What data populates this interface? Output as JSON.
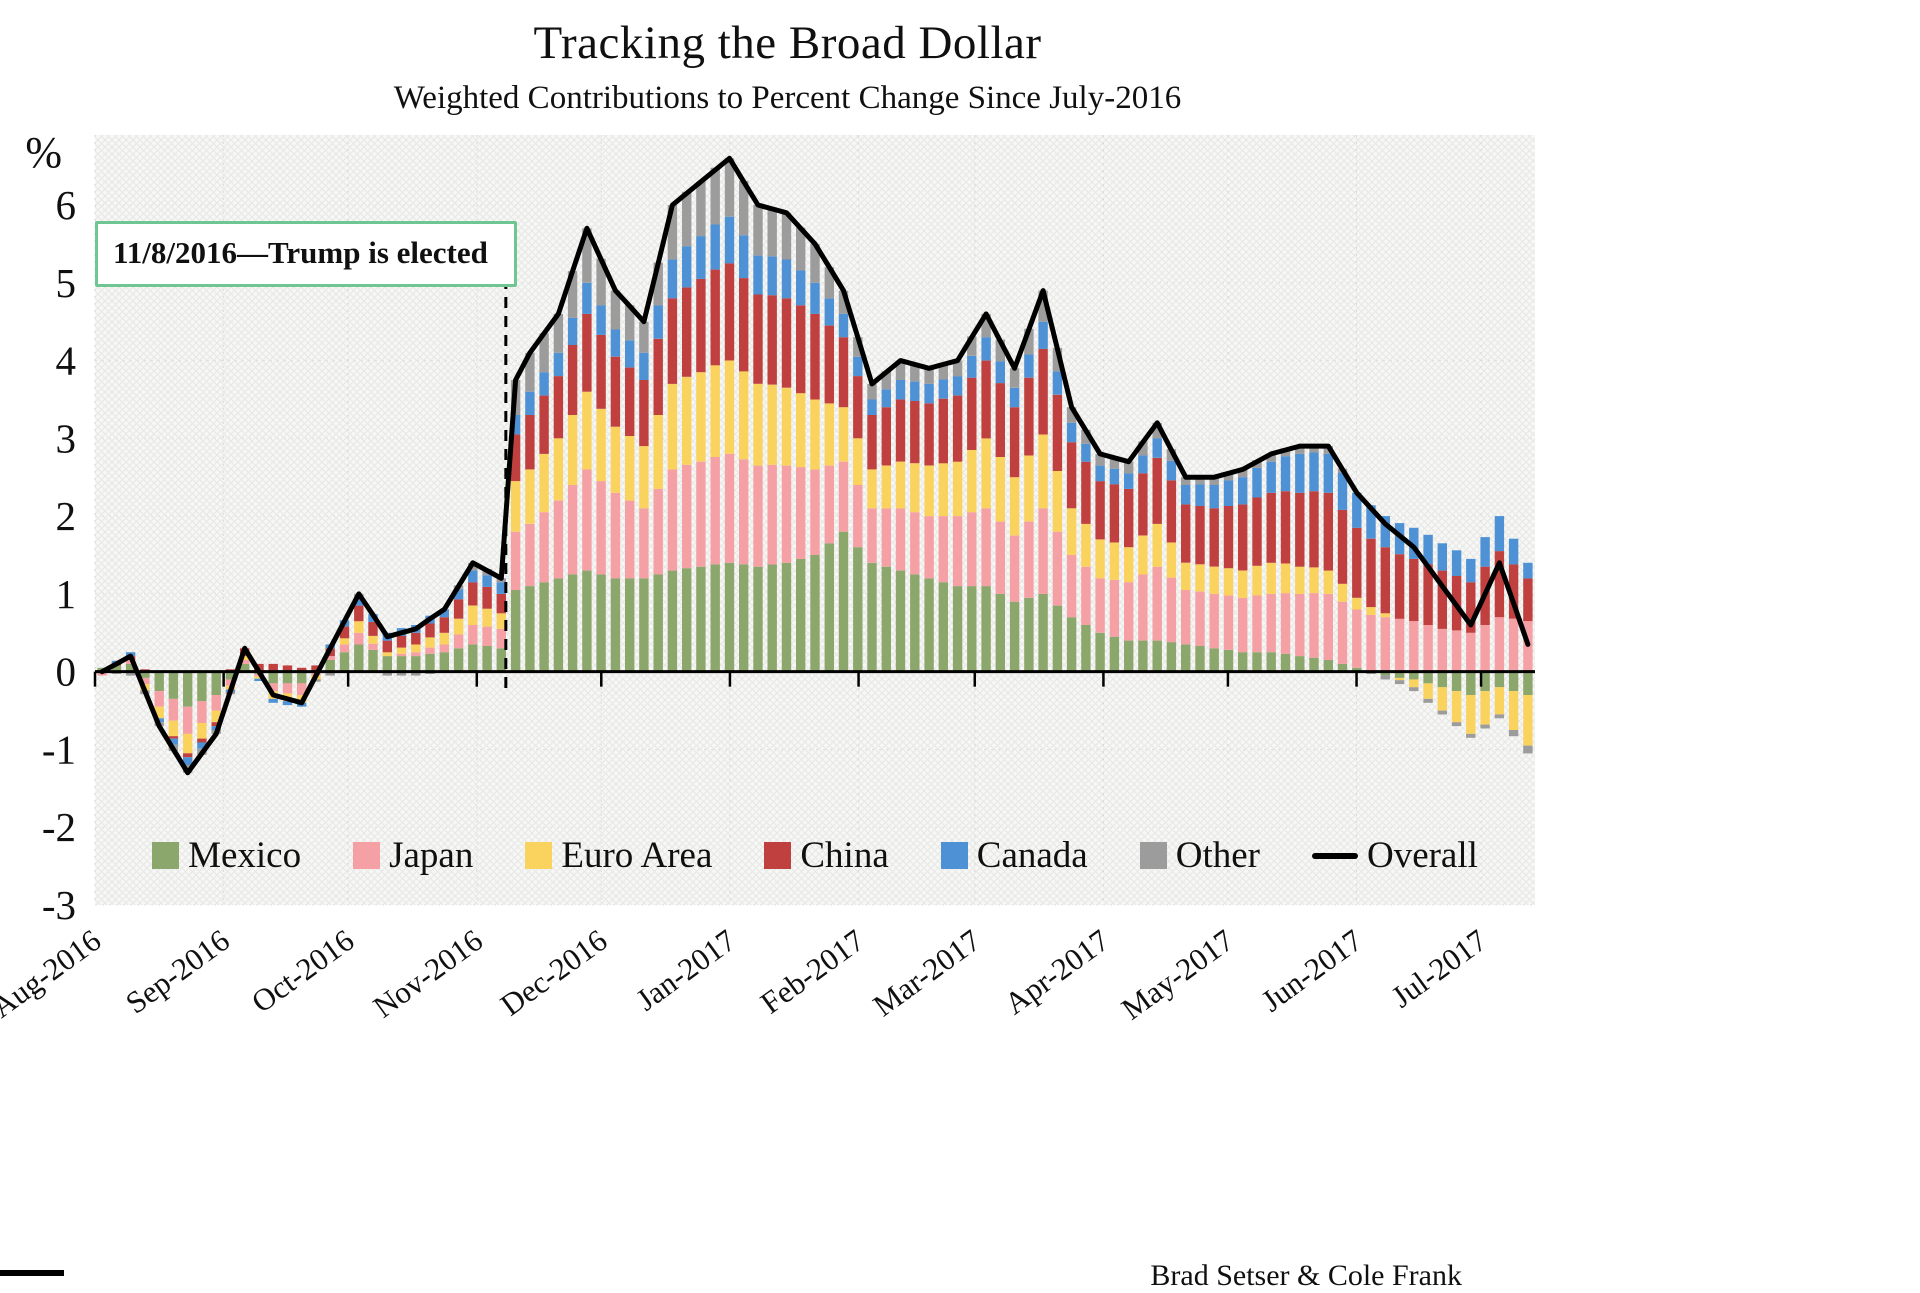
{
  "title": "Tracking the Broad Dollar",
  "subtitle": "Weighted Contributions to Percent Change Since July-2016",
  "caption": "Brad Setser & Cole Frank",
  "annotation": {
    "text": "11/8/2016—Trump is elected",
    "day": 99,
    "box_border_color": "#6FC692",
    "line_color": "#000000"
  },
  "y_axis": {
    "unit_label": "%",
    "ticks": [
      6,
      5,
      4,
      3,
      2,
      1,
      0,
      -1,
      -2,
      -3
    ]
  },
  "legend": {
    "labels": [
      "Mexico",
      "Japan",
      "Euro Area",
      "China",
      "Canada",
      "Other",
      "Overall"
    ]
  },
  "chart_data": {
    "type": "bar",
    "stacked": true,
    "grid": true,
    "legend_position": "bottom-inside",
    "ylim": [
      -3,
      6.9
    ],
    "x_span_days": 347,
    "x_ticks": [
      {
        "label": "Aug-2016",
        "day": 0
      },
      {
        "label": "Sep-2016",
        "day": 31
      },
      {
        "label": "Oct-2016",
        "day": 61
      },
      {
        "label": "Nov-2016",
        "day": 92
      },
      {
        "label": "Dec-2016",
        "day": 122
      },
      {
        "label": "Jan-2017",
        "day": 153
      },
      {
        "label": "Feb-2017",
        "day": 184
      },
      {
        "label": "Mar-2017",
        "day": 212
      },
      {
        "label": "Apr-2017",
        "day": 243
      },
      {
        "label": "May-2017",
        "day": 273
      },
      {
        "label": "Jun-2017",
        "day": 304
      },
      {
        "label": "Jul-2017",
        "day": 334
      }
    ],
    "series": [
      {
        "name": "Mexico",
        "color": "#8CA76C",
        "values": [
          0.05,
          0.08,
          0.1,
          -0.08,
          -0.25,
          -0.35,
          -0.45,
          -0.38,
          -0.3,
          -0.1,
          0.1,
          -0.03,
          -0.15,
          -0.15,
          -0.15,
          0.0,
          0.15,
          0.25,
          0.35,
          0.28,
          0.2,
          0.2,
          0.2,
          0.23,
          0.25,
          0.3,
          0.35,
          0.33,
          0.3,
          1.05,
          1.1,
          1.15,
          1.2,
          1.25,
          1.3,
          1.25,
          1.2,
          1.2,
          1.2,
          1.25,
          1.3,
          1.33,
          1.35,
          1.38,
          1.4,
          1.38,
          1.35,
          1.38,
          1.4,
          1.45,
          1.5,
          1.65,
          1.8,
          1.6,
          1.4,
          1.35,
          1.3,
          1.25,
          1.2,
          1.15,
          1.1,
          1.1,
          1.1,
          1.0,
          0.9,
          0.95,
          1.0,
          0.85,
          0.7,
          0.6,
          0.5,
          0.45,
          0.4,
          0.4,
          0.4,
          0.38,
          0.35,
          0.33,
          0.3,
          0.28,
          0.25,
          0.25,
          0.25,
          0.23,
          0.2,
          0.18,
          0.15,
          0.1,
          0.05,
          0.0,
          -0.05,
          -0.08,
          -0.1,
          -0.15,
          -0.2,
          -0.25,
          -0.3,
          -0.25,
          -0.2,
          -0.25,
          -0.3
        ]
      },
      {
        "name": "Japan",
        "color": "#F5A0A4",
        "values": [
          -0.05,
          0.0,
          0.05,
          -0.08,
          -0.2,
          -0.28,
          -0.35,
          -0.28,
          -0.2,
          -0.08,
          0.05,
          -0.03,
          -0.1,
          -0.13,
          -0.15,
          -0.05,
          0.05,
          0.1,
          0.15,
          0.08,
          0.0,
          0.03,
          0.05,
          0.08,
          0.1,
          0.18,
          0.25,
          0.25,
          0.25,
          0.75,
          0.8,
          0.9,
          1.0,
          1.15,
          1.3,
          1.2,
          1.1,
          1.0,
          0.9,
          1.1,
          1.3,
          1.33,
          1.35,
          1.38,
          1.4,
          1.35,
          1.3,
          1.28,
          1.25,
          1.18,
          1.1,
          1.0,
          0.9,
          0.8,
          0.7,
          0.75,
          0.8,
          0.8,
          0.8,
          0.85,
          0.9,
          0.95,
          1.0,
          0.93,
          0.85,
          0.98,
          1.1,
          0.95,
          0.8,
          0.75,
          0.7,
          0.73,
          0.75,
          0.85,
          0.95,
          0.83,
          0.7,
          0.7,
          0.7,
          0.7,
          0.7,
          0.73,
          0.75,
          0.78,
          0.8,
          0.83,
          0.85,
          0.8,
          0.75,
          0.73,
          0.7,
          0.68,
          0.65,
          0.6,
          0.55,
          0.53,
          0.5,
          0.6,
          0.7,
          0.68,
          0.65
        ]
      },
      {
        "name": "Euro Area",
        "color": "#FAD35F",
        "values": [
          0.0,
          0.0,
          0.0,
          -0.08,
          -0.15,
          -0.2,
          -0.25,
          -0.2,
          -0.15,
          -0.05,
          0.05,
          -0.03,
          -0.1,
          -0.1,
          -0.1,
          -0.05,
          0.0,
          0.08,
          0.15,
          0.1,
          0.05,
          0.08,
          0.1,
          0.13,
          0.15,
          0.2,
          0.25,
          0.23,
          0.2,
          0.65,
          0.7,
          0.75,
          0.8,
          0.9,
          1.0,
          0.93,
          0.85,
          0.83,
          0.8,
          0.95,
          1.1,
          1.13,
          1.15,
          1.18,
          1.2,
          1.13,
          1.05,
          1.03,
          1.0,
          0.95,
          0.9,
          0.8,
          0.7,
          0.6,
          0.5,
          0.55,
          0.6,
          0.63,
          0.65,
          0.68,
          0.7,
          0.8,
          0.9,
          0.83,
          0.75,
          0.85,
          0.95,
          0.78,
          0.6,
          0.55,
          0.5,
          0.48,
          0.45,
          0.5,
          0.55,
          0.45,
          0.35,
          0.35,
          0.35,
          0.35,
          0.35,
          0.38,
          0.4,
          0.38,
          0.35,
          0.33,
          0.3,
          0.23,
          0.15,
          0.1,
          0.05,
          -0.03,
          -0.1,
          -0.2,
          -0.3,
          -0.4,
          -0.5,
          -0.43,
          -0.35,
          -0.5,
          -0.65
        ]
      },
      {
        "name": "China",
        "color": "#C04040",
        "values": [
          0.0,
          0.03,
          0.05,
          0.03,
          0.0,
          -0.03,
          -0.05,
          -0.05,
          -0.05,
          0.03,
          0.1,
          0.1,
          0.1,
          0.08,
          0.05,
          0.08,
          0.1,
          0.15,
          0.2,
          0.18,
          0.15,
          0.15,
          0.15,
          0.18,
          0.2,
          0.25,
          0.3,
          0.28,
          0.25,
          0.6,
          0.7,
          0.75,
          0.8,
          0.9,
          1.0,
          0.95,
          0.9,
          0.88,
          0.85,
          0.98,
          1.1,
          1.15,
          1.2,
          1.23,
          1.25,
          1.2,
          1.15,
          1.15,
          1.15,
          1.13,
          1.1,
          1.0,
          0.9,
          0.8,
          0.7,
          0.75,
          0.8,
          0.8,
          0.8,
          0.83,
          0.85,
          0.93,
          1.0,
          0.95,
          0.9,
          1.0,
          1.1,
          0.98,
          0.85,
          0.8,
          0.75,
          0.75,
          0.75,
          0.8,
          0.85,
          0.8,
          0.75,
          0.75,
          0.75,
          0.8,
          0.85,
          0.88,
          0.9,
          0.93,
          0.95,
          0.98,
          1.0,
          0.95,
          0.9,
          0.88,
          0.85,
          0.83,
          0.8,
          0.78,
          0.75,
          0.7,
          0.65,
          0.75,
          0.85,
          0.7,
          0.55
        ]
      },
      {
        "name": "Canada",
        "color": "#4E91D5",
        "values": [
          0.0,
          0.03,
          0.05,
          0.0,
          -0.05,
          -0.08,
          -0.1,
          -0.08,
          -0.05,
          -0.03,
          0.0,
          -0.03,
          -0.05,
          -0.05,
          -0.05,
          0.0,
          0.05,
          0.08,
          0.1,
          0.1,
          0.1,
          0.1,
          0.1,
          0.1,
          0.1,
          0.13,
          0.15,
          0.15,
          0.15,
          0.25,
          0.3,
          0.3,
          0.3,
          0.35,
          0.4,
          0.38,
          0.35,
          0.35,
          0.35,
          0.43,
          0.5,
          0.53,
          0.55,
          0.58,
          0.6,
          0.55,
          0.5,
          0.5,
          0.5,
          0.45,
          0.4,
          0.35,
          0.3,
          0.25,
          0.2,
          0.23,
          0.25,
          0.25,
          0.25,
          0.25,
          0.25,
          0.28,
          0.3,
          0.28,
          0.25,
          0.3,
          0.35,
          0.3,
          0.25,
          0.23,
          0.2,
          0.2,
          0.2,
          0.23,
          0.25,
          0.25,
          0.25,
          0.28,
          0.3,
          0.33,
          0.35,
          0.38,
          0.4,
          0.45,
          0.5,
          0.5,
          0.5,
          0.48,
          0.45,
          0.43,
          0.4,
          0.4,
          0.4,
          0.38,
          0.35,
          0.33,
          0.3,
          0.38,
          0.45,
          0.33,
          0.2
        ]
      },
      {
        "name": "Other",
        "color": "#9C9C9C",
        "values": [
          0.0,
          -0.03,
          -0.05,
          -0.05,
          -0.05,
          -0.08,
          -0.1,
          -0.08,
          -0.05,
          -0.03,
          0.0,
          0.0,
          0.0,
          0.0,
          0.0,
          -0.03,
          -0.05,
          0.0,
          0.05,
          0.0,
          -0.05,
          -0.05,
          -0.05,
          -0.03,
          0.0,
          0.05,
          0.1,
          0.08,
          0.05,
          0.45,
          0.5,
          0.5,
          0.5,
          0.6,
          0.7,
          0.6,
          0.5,
          0.45,
          0.4,
          0.55,
          0.7,
          0.7,
          0.7,
          0.73,
          0.75,
          0.7,
          0.65,
          0.63,
          0.6,
          0.55,
          0.5,
          0.4,
          0.3,
          0.25,
          0.2,
          0.23,
          0.25,
          0.23,
          0.2,
          0.2,
          0.2,
          0.25,
          0.3,
          0.28,
          0.25,
          0.33,
          0.4,
          0.3,
          0.2,
          0.18,
          0.15,
          0.15,
          0.15,
          0.18,
          0.2,
          0.15,
          0.1,
          0.1,
          0.1,
          0.1,
          0.1,
          0.1,
          0.1,
          0.1,
          0.1,
          0.1,
          0.1,
          0.05,
          0.0,
          -0.03,
          -0.05,
          -0.05,
          -0.05,
          -0.05,
          -0.05,
          -0.05,
          -0.05,
          -0.05,
          -0.05,
          -0.08,
          -0.1
        ]
      }
    ],
    "overall": {
      "name": "Overall",
      "color": "#000000",
      "values": [
        0.0,
        0.1,
        0.2,
        -0.25,
        -0.7,
        -1.0,
        -1.3,
        -1.05,
        -0.8,
        -0.25,
        0.3,
        0.0,
        -0.3,
        -0.35,
        -0.4,
        -0.05,
        0.3,
        0.65,
        1.0,
        0.73,
        0.45,
        0.5,
        0.55,
        0.68,
        0.8,
        1.1,
        1.4,
        1.3,
        1.2,
        3.75,
        4.1,
        4.35,
        4.6,
        5.15,
        5.7,
        5.3,
        4.9,
        4.7,
        4.5,
        5.25,
        6.0,
        6.15,
        6.3,
        6.45,
        6.6,
        6.3,
        6.0,
        5.95,
        5.9,
        5.7,
        5.5,
        5.2,
        4.9,
        4.3,
        3.7,
        3.85,
        4.0,
        3.95,
        3.9,
        3.95,
        4.0,
        4.3,
        4.6,
        4.25,
        3.9,
        4.4,
        4.9,
        4.15,
        3.4,
        3.1,
        2.8,
        2.75,
        2.7,
        2.95,
        3.2,
        2.85,
        2.5,
        2.5,
        2.5,
        2.55,
        2.6,
        2.7,
        2.8,
        2.85,
        2.9,
        2.9,
        2.9,
        2.6,
        2.3,
        2.1,
        1.9,
        1.75,
        1.6,
        1.35,
        1.1,
        0.85,
        0.6,
        1.0,
        1.4,
        0.88,
        0.35
      ]
    }
  }
}
